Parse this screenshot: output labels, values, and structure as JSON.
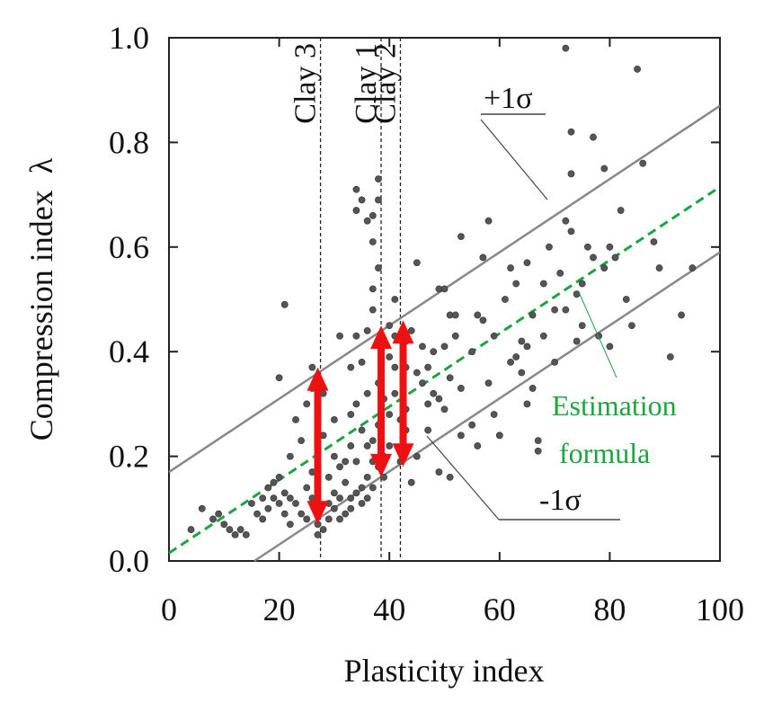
{
  "chart_data": {
    "type": "scatter",
    "xlabel": "Plasticity index",
    "ylabel": "Compression index  λ",
    "xlim": [
      0,
      100
    ],
    "ylim": [
      0,
      1.0
    ],
    "x_ticks": [
      "0",
      "20",
      "40",
      "60",
      "80",
      "100"
    ],
    "y_ticks": [
      "0.0",
      "0.2",
      "0.4",
      "0.6",
      "0.8",
      "1.0"
    ],
    "grid": false,
    "series": [
      {
        "kind": "points",
        "color": "#555555",
        "points": [
          [
            4,
            0.06
          ],
          [
            6,
            0.1
          ],
          [
            8,
            0.08
          ],
          [
            9,
            0.09
          ],
          [
            10,
            0.07
          ],
          [
            11,
            0.06
          ],
          [
            12,
            0.05
          ],
          [
            13,
            0.06
          ],
          [
            14,
            0.05
          ],
          [
            15,
            0.11
          ],
          [
            16,
            0.09
          ],
          [
            17,
            0.12
          ],
          [
            17,
            0.08
          ],
          [
            18,
            0.14
          ],
          [
            18,
            0.1
          ],
          [
            19,
            0.15
          ],
          [
            19,
            0.12
          ],
          [
            20,
            0.35
          ],
          [
            20,
            0.16
          ],
          [
            20,
            0.11
          ],
          [
            21,
            0.49
          ],
          [
            21,
            0.13
          ],
          [
            21,
            0.09
          ],
          [
            22,
            0.07
          ],
          [
            22,
            0.12
          ],
          [
            22,
            0.2
          ],
          [
            23,
            0.27
          ],
          [
            23,
            0.11
          ],
          [
            24,
            0.23
          ],
          [
            24,
            0.09
          ],
          [
            25,
            0.3
          ],
          [
            25,
            0.14
          ],
          [
            25,
            0.08
          ],
          [
            26,
            0.37
          ],
          [
            26,
            0.33
          ],
          [
            26,
            0.17
          ],
          [
            26,
            0.12
          ],
          [
            27,
            0.1
          ],
          [
            27,
            0.07
          ],
          [
            27,
            0.05
          ],
          [
            28,
            0.32
          ],
          [
            28,
            0.24
          ],
          [
            28,
            0.06
          ],
          [
            29,
            0.11
          ],
          [
            29,
            0.16
          ],
          [
            29,
            0.08
          ],
          [
            30,
            0.13
          ],
          [
            30,
            0.2
          ],
          [
            30,
            0.27
          ],
          [
            30,
            0.1
          ],
          [
            31,
            0.43
          ],
          [
            31,
            0.18
          ],
          [
            31,
            0.12
          ],
          [
            31,
            0.08
          ],
          [
            32,
            0.09
          ],
          [
            32,
            0.15
          ],
          [
            32,
            0.19
          ],
          [
            33,
            0.12
          ],
          [
            33,
            0.1
          ],
          [
            33,
            0.22
          ],
          [
            33,
            0.28
          ],
          [
            33,
            0.37
          ],
          [
            34,
            0.71
          ],
          [
            34,
            0.43
          ],
          [
            34,
            0.3
          ],
          [
            34,
            0.19
          ],
          [
            34,
            0.13
          ],
          [
            35,
            0.69
          ],
          [
            35,
            0.38
          ],
          [
            35,
            0.14
          ],
          [
            35,
            0.11
          ],
          [
            35,
            0.25
          ],
          [
            36,
            0.32
          ],
          [
            36,
            0.44
          ],
          [
            36,
            0.22
          ],
          [
            36,
            0.16
          ],
          [
            36,
            0.12
          ],
          [
            37,
            0.66
          ],
          [
            37,
            0.61
          ],
          [
            37,
            0.48
          ],
          [
            37,
            0.23
          ],
          [
            37,
            0.19
          ],
          [
            37,
            0.14
          ],
          [
            38,
            0.73
          ],
          [
            38,
            0.69
          ],
          [
            38,
            0.56
          ],
          [
            38,
            0.34
          ],
          [
            38,
            0.26
          ],
          [
            38,
            0.18
          ],
          [
            39,
            0.42
          ],
          [
            39,
            0.31
          ],
          [
            39,
            0.2
          ],
          [
            39,
            0.16
          ],
          [
            40,
            0.45
          ],
          [
            40,
            0.28
          ],
          [
            40,
            0.22
          ],
          [
            41,
            0.5
          ],
          [
            41,
            0.43
          ],
          [
            41,
            0.37
          ],
          [
            41,
            0.32
          ],
          [
            42,
            0.27
          ],
          [
            42,
            0.19
          ],
          [
            43,
            0.25
          ],
          [
            43,
            0.37
          ],
          [
            43,
            0.29
          ],
          [
            44,
            0.44
          ],
          [
            44,
            0.15
          ],
          [
            45,
            0.57
          ],
          [
            45,
            0.36
          ],
          [
            45,
            0.2
          ],
          [
            46,
            0.41
          ],
          [
            46,
            0.34
          ],
          [
            47,
            0.37
          ],
          [
            47,
            0.3
          ],
          [
            48,
            0.4
          ],
          [
            48,
            0.32
          ],
          [
            49,
            0.52
          ],
          [
            49,
            0.31
          ],
          [
            49,
            0.17
          ],
          [
            50,
            0.52
          ],
          [
            50,
            0.41
          ],
          [
            50,
            0.29
          ],
          [
            51,
            0.47
          ],
          [
            51,
            0.35
          ],
          [
            51,
            0.16
          ],
          [
            52,
            0.47
          ],
          [
            53,
            0.62
          ],
          [
            53,
            0.33
          ],
          [
            53,
            0.24
          ],
          [
            55,
            0.4
          ],
          [
            55,
            0.26
          ],
          [
            56,
            0.47
          ],
          [
            56,
            0.22
          ],
          [
            57,
            0.46
          ],
          [
            57,
            0.58
          ],
          [
            58,
            0.65
          ],
          [
            58,
            0.34
          ],
          [
            59,
            0.28
          ],
          [
            59,
            0.43
          ],
          [
            60,
            0.24
          ],
          [
            61,
            0.5
          ],
          [
            62,
            0.56
          ],
          [
            62,
            0.38
          ],
          [
            63,
            0.53
          ],
          [
            63,
            0.39
          ],
          [
            64,
            0.42
          ],
          [
            64,
            0.36
          ],
          [
            65,
            0.3
          ],
          [
            65,
            0.57
          ],
          [
            65,
            0.41
          ],
          [
            66,
            0.47
          ],
          [
            66,
            0.33
          ],
          [
            67,
            0.23
          ],
          [
            67,
            0.21
          ],
          [
            68,
            0.53
          ],
          [
            68,
            0.43
          ],
          [
            69,
            0.6
          ],
          [
            70,
            0.38
          ],
          [
            70,
            0.48
          ],
          [
            71,
            0.55
          ],
          [
            72,
            0.98
          ],
          [
            72,
            0.65
          ],
          [
            72,
            0.48
          ],
          [
            73,
            0.82
          ],
          [
            73,
            0.74
          ],
          [
            73,
            0.63
          ],
          [
            74,
            0.51
          ],
          [
            74,
            0.42
          ],
          [
            75,
            0.53
          ],
          [
            75,
            0.45
          ],
          [
            76,
            0.6
          ],
          [
            77,
            0.81
          ],
          [
            77,
            0.58
          ],
          [
            78,
            0.43
          ],
          [
            79,
            0.75
          ],
          [
            79,
            0.56
          ],
          [
            80,
            0.6
          ],
          [
            80,
            0.41
          ],
          [
            81,
            0.58
          ],
          [
            82,
            0.67
          ],
          [
            83,
            0.5
          ],
          [
            84,
            0.45
          ],
          [
            85,
            0.94
          ],
          [
            86,
            0.76
          ],
          [
            88,
            0.61
          ],
          [
            89,
            0.56
          ],
          [
            91,
            0.39
          ],
          [
            93,
            0.47
          ],
          [
            95,
            0.56
          ],
          [
            34,
            0.67
          ],
          [
            36,
            0.65
          ],
          [
            37,
            0.52
          ],
          [
            40,
            0.39
          ],
          [
            43,
            0.42
          ],
          [
            47,
            0.25
          ],
          [
            52,
            0.43
          ]
        ]
      },
      {
        "kind": "line",
        "color": "#888888",
        "x": [
          0,
          100
        ],
        "y": [
          0.17,
          0.87
        ]
      },
      {
        "kind": "dashed-line",
        "color": "#1aa63c",
        "x": [
          0,
          100
        ],
        "y": [
          0.015,
          0.715
        ]
      },
      {
        "kind": "line",
        "color": "#888888",
        "x": [
          15.5,
          100
        ],
        "y": [
          0.0,
          0.59
        ]
      }
    ],
    "vertical_lines": [
      {
        "x": 27.5,
        "label": "Clay 3"
      },
      {
        "x": 38.5,
        "label": "Clay 1"
      },
      {
        "x": 42,
        "label": "Clay 2"
      }
    ],
    "arrows": [
      {
        "x": 27,
        "y_low": 0.07,
        "y_high": 0.37,
        "color": "#ee1111"
      },
      {
        "x": 38.5,
        "y_low": 0.16,
        "y_high": 0.45,
        "color": "#ee1111"
      },
      {
        "x": 42.5,
        "y_low": 0.18,
        "y_high": 0.46,
        "color": "#ee1111"
      }
    ],
    "annotations": [
      {
        "text": "+1σ",
        "color": "#111111"
      },
      {
        "text": "-1σ",
        "color": "#111111"
      },
      {
        "text": "Estimation",
        "color": "#1aa63c"
      },
      {
        "text": "formula",
        "color": "#1aa63c"
      }
    ]
  }
}
